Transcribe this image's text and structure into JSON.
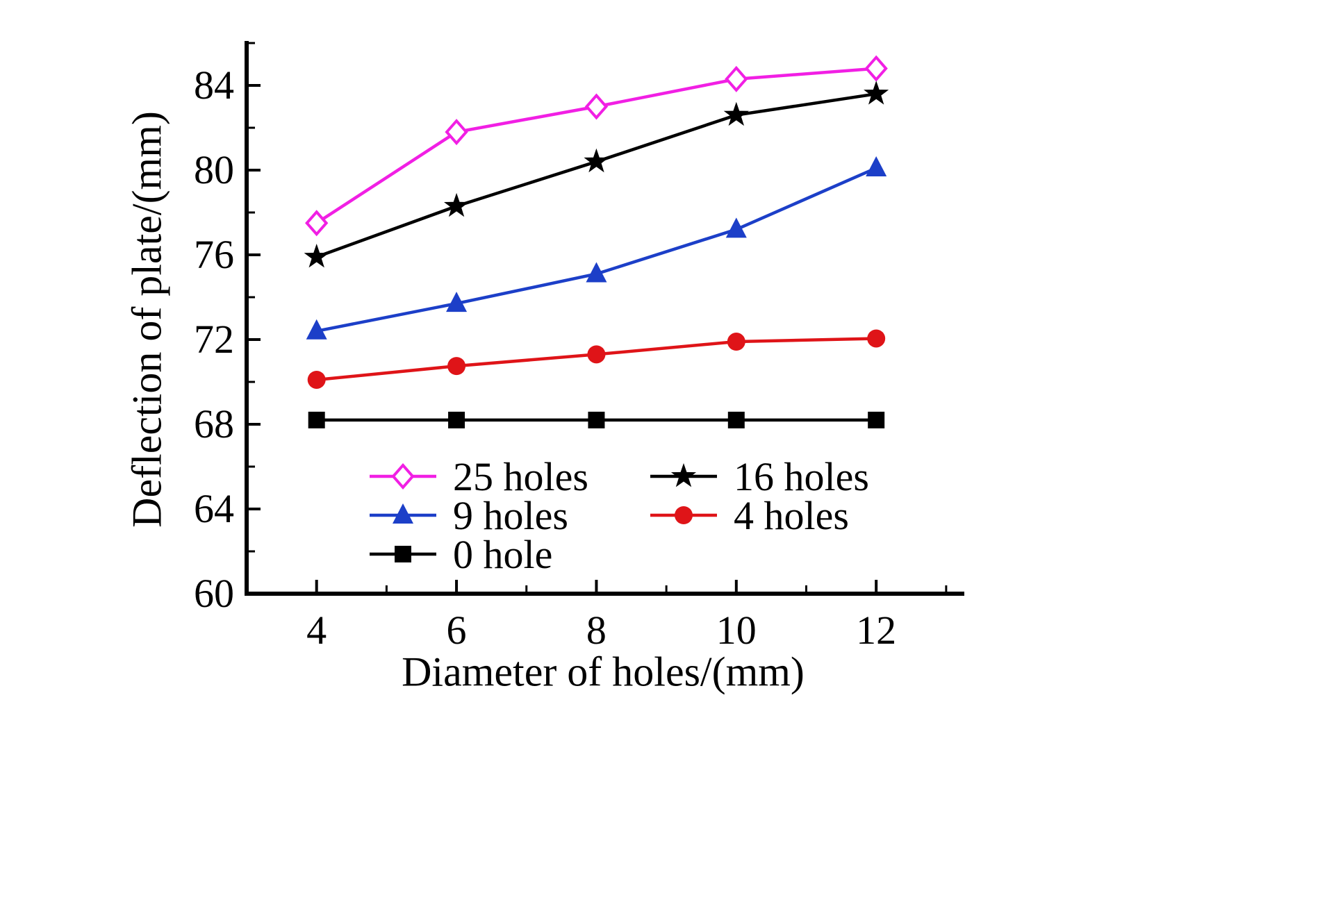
{
  "figure": {
    "xlabel": "Diameter of holes/(mm)",
    "ylabel": "Deflection of plate/(mm)"
  },
  "chart_data": {
    "type": "line",
    "title": "",
    "xlabel": "Diameter of holes/(mm)",
    "ylabel": "Deflection of plate/(mm)",
    "x": [
      4,
      6,
      8,
      10,
      12
    ],
    "x_ticks": [
      "4",
      "6",
      "8",
      "10",
      "12"
    ],
    "x_tick_values": [
      4,
      6,
      8,
      10,
      12
    ],
    "x_minor_ticks": [
      5,
      7,
      9,
      11,
      13
    ],
    "y_ticks": [
      "60",
      "64",
      "68",
      "72",
      "76",
      "80",
      "84"
    ],
    "y_tick_values": [
      60,
      64,
      68,
      72,
      76,
      80,
      84
    ],
    "y_minor_ticks": [
      62,
      66,
      70,
      74,
      78,
      82,
      86
    ],
    "xlim": [
      3,
      13.2
    ],
    "ylim": [
      60,
      86
    ],
    "grid": false,
    "legend_position": "inside-bottom-left",
    "series": [
      {
        "name": "25 holes",
        "color": "#f11fe4",
        "marker": "diamond-open",
        "values": [
          77.5,
          81.8,
          83.0,
          84.3,
          84.8
        ]
      },
      {
        "name": "16 holes",
        "color": "#000000",
        "marker": "star",
        "values": [
          75.9,
          78.3,
          80.4,
          82.6,
          83.6
        ]
      },
      {
        "name": "9 holes",
        "color": "#1c3fc8",
        "marker": "triangle",
        "values": [
          72.4,
          73.7,
          75.1,
          77.2,
          80.1
        ]
      },
      {
        "name": "4 holes",
        "color": "#df1418",
        "marker": "circle",
        "values": [
          70.1,
          70.75,
          71.3,
          71.9,
          72.05
        ]
      },
      {
        "name": "0 hole",
        "color": "#000000",
        "marker": "square",
        "values": [
          68.2,
          68.2,
          68.2,
          68.2,
          68.2
        ]
      }
    ],
    "legend_columns": [
      [
        0,
        2,
        4
      ],
      [
        1,
        3
      ]
    ]
  }
}
